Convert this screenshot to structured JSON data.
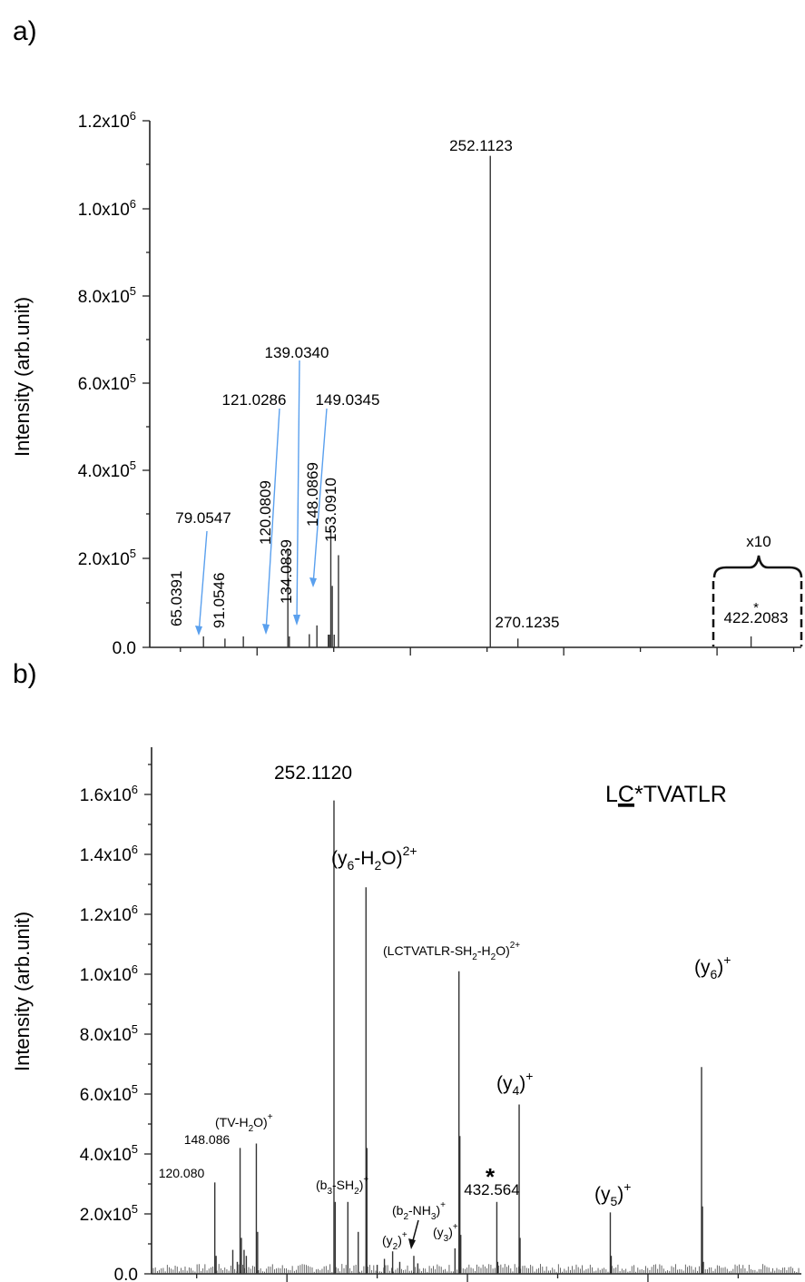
{
  "panels": [
    {
      "label": "a)",
      "ylabel": "Intensity (arb.unit)",
      "yticks": [
        {
          "value": 0,
          "text": "0.0",
          "exp": ""
        },
        {
          "value": 200000,
          "text": "2.0x10",
          "exp": "5"
        },
        {
          "value": 400000,
          "text": "4.0x10",
          "exp": "5"
        },
        {
          "value": 600000,
          "text": "6.0x10",
          "exp": "5"
        },
        {
          "value": 800000,
          "text": "8.0x10",
          "exp": "5"
        },
        {
          "value": 1000000,
          "text": "1.0x10",
          "exp": "6"
        },
        {
          "value": 1200000,
          "text": "1.2x10",
          "exp": "6"
        }
      ],
      "xticks_major": [
        100,
        200,
        300,
        400
      ],
      "xticks_minor": [
        50,
        150,
        250,
        350,
        450
      ],
      "zoom_label": "x10",
      "zoom_range": [
        400,
        450
      ],
      "star": "*"
    },
    {
      "label": "b)",
      "ylabel": "Intensity (arb.unit)",
      "peptide": {
        "pre": "L",
        "underlined": "C",
        "post": "*TVATLR"
      },
      "yticks": [
        {
          "value": 0,
          "text": "0.0",
          "exp": ""
        },
        {
          "value": 200000,
          "text": "2.0x10",
          "exp": "5"
        },
        {
          "value": 400000,
          "text": "4.0x10",
          "exp": "5"
        },
        {
          "value": 600000,
          "text": "6.0x10",
          "exp": "5"
        },
        {
          "value": 800000,
          "text": "8.0x10",
          "exp": "5"
        },
        {
          "value": 1000000,
          "text": "1.0x10",
          "exp": "6"
        },
        {
          "value": 1200000,
          "text": "1.2x10",
          "exp": "6"
        },
        {
          "value": 1400000,
          "text": "1.4x10",
          "exp": "6"
        },
        {
          "value": 1600000,
          "text": "1.6x10",
          "exp": "6"
        }
      ],
      "xticks_major": [
        200,
        400,
        600
      ],
      "xticks_minor": [
        100,
        300,
        500,
        700
      ],
      "star": "*"
    }
  ],
  "chart_data": [
    {
      "type": "bar",
      "title": "",
      "xlabel": "",
      "ylabel": "Intensity (arb.unit)",
      "xlim": [
        30,
        455
      ],
      "ylim": [
        0,
        1250000
      ],
      "peaks": [
        {
          "mz": 65.0391,
          "intensity": 25000,
          "label": "65.0391"
        },
        {
          "mz": 79.0547,
          "intensity": 20000,
          "label": "79.0547"
        },
        {
          "mz": 91.0546,
          "intensity": 25000,
          "label": "91.0546"
        },
        {
          "mz": 120.0809,
          "intensity": 225000,
          "label": "120.0809"
        },
        {
          "mz": 121.0286,
          "intensity": 25000,
          "label": "121.0286"
        },
        {
          "mz": 134.0839,
          "intensity": 30000,
          "label": "134.0839"
        },
        {
          "mz": 139.034,
          "intensity": 50000,
          "label": "139.0340"
        },
        {
          "mz": 148.0869,
          "intensity": 270000,
          "label": "148.0869"
        },
        {
          "mz": 149.0345,
          "intensity": 140000,
          "label": "149.0345"
        },
        {
          "mz": 153.091,
          "intensity": 210000,
          "label": "153.0910"
        },
        {
          "mz": 252.1123,
          "intensity": 1120000,
          "label": "252.1123"
        },
        {
          "mz": 270.1235,
          "intensity": 20000,
          "label": "270.1235"
        },
        {
          "mz": 422.2083,
          "intensity": 25000,
          "label": "422.2083"
        }
      ]
    },
    {
      "type": "bar",
      "title": "",
      "xlabel": "",
      "ylabel": "Intensity (arb.unit)",
      "xlim": [
        50,
        770
      ],
      "ylim": [
        0,
        1700000
      ],
      "peaks": [
        {
          "mz": 120.08,
          "intensity": 305000,
          "label": "120.080"
        },
        {
          "mz": 148.086,
          "intensity": 420000,
          "label": "148.086"
        },
        {
          "mz": 166.1,
          "intensity": 435000,
          "label": "(TV-H2O)+"
        },
        {
          "mz": 252.112,
          "intensity": 1580000,
          "label": "252.1120"
        },
        {
          "mz": 267.5,
          "intensity": 240000,
          "label": "(b3-SH2)+"
        },
        {
          "mz": 287.6,
          "intensity": 1290000,
          "label": "(y6-H2O)2+"
        },
        {
          "mz": 317.1,
          "intensity": 75000,
          "label": "(y2)+"
        },
        {
          "mz": 340.6,
          "intensity": 60000,
          "label": "(b2-NH3)+"
        },
        {
          "mz": 386.2,
          "intensity": 85000,
          "label": "(y3)+"
        },
        {
          "mz": 390.6,
          "intensity": 1010000,
          "label": "(LCTVATLR-SH2-H2O)2+"
        },
        {
          "mz": 432.564,
          "intensity": 240000,
          "label": "432.564"
        },
        {
          "mz": 457.3,
          "intensity": 565000,
          "label": "(y4)+"
        },
        {
          "mz": 558.3,
          "intensity": 205000,
          "label": "(y5)+"
        },
        {
          "mz": 659.4,
          "intensity": 690000,
          "label": "(y6)+"
        }
      ]
    }
  ]
}
